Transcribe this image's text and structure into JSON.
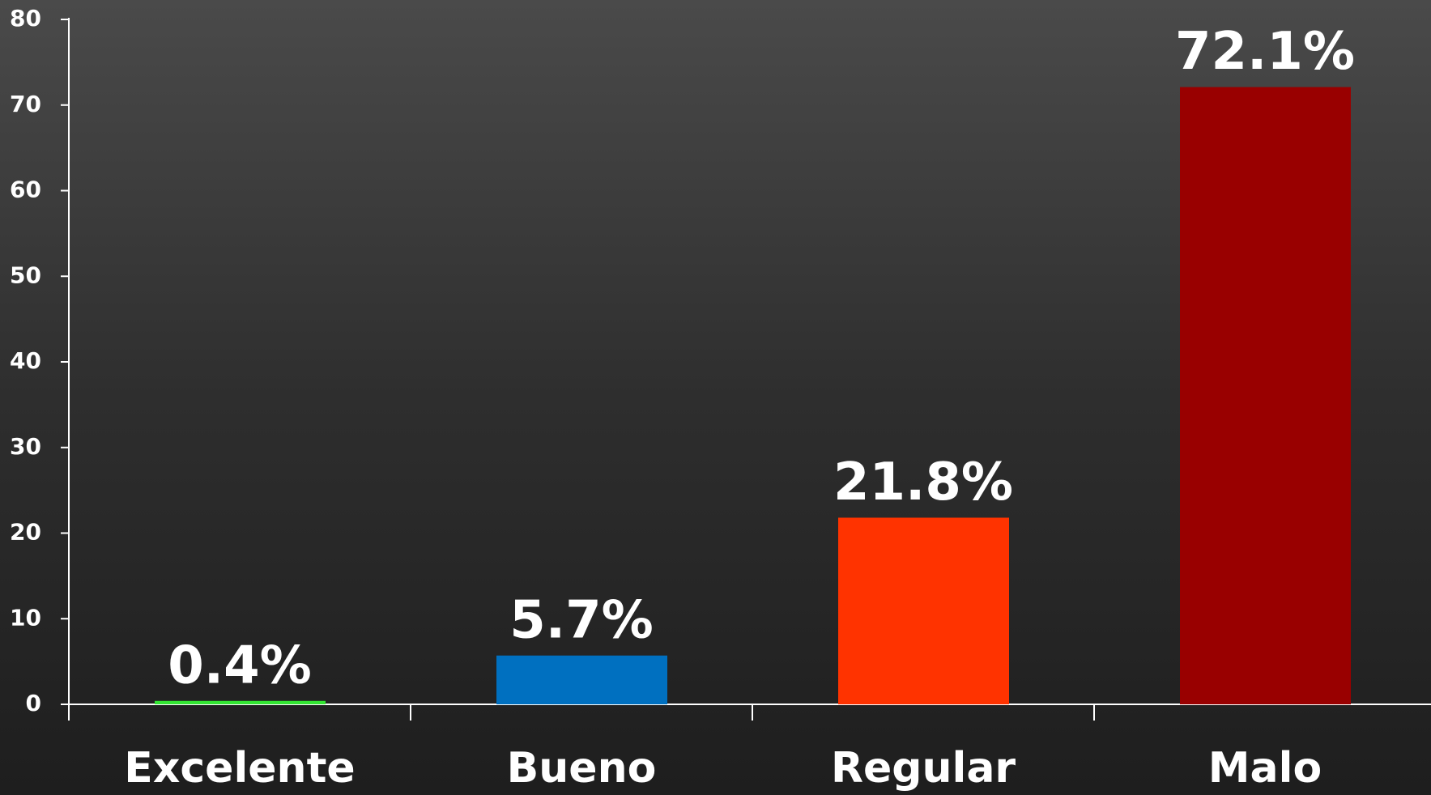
{
  "chart_data": {
    "type": "bar",
    "categories": [
      "Excelente",
      "Bueno",
      "Regular",
      "Malo"
    ],
    "values": [
      0.4,
      5.7,
      21.8,
      72.1
    ],
    "value_labels": [
      "0.4%",
      "5.7%",
      "21.8%",
      "72.1%"
    ],
    "colors": [
      "#33e633",
      "#0070c0",
      "#ff3300",
      "#990000"
    ],
    "ylim": [
      0,
      80
    ],
    "yticks": [
      0,
      10,
      20,
      30,
      40,
      50,
      60,
      70,
      80
    ],
    "grid": false
  }
}
